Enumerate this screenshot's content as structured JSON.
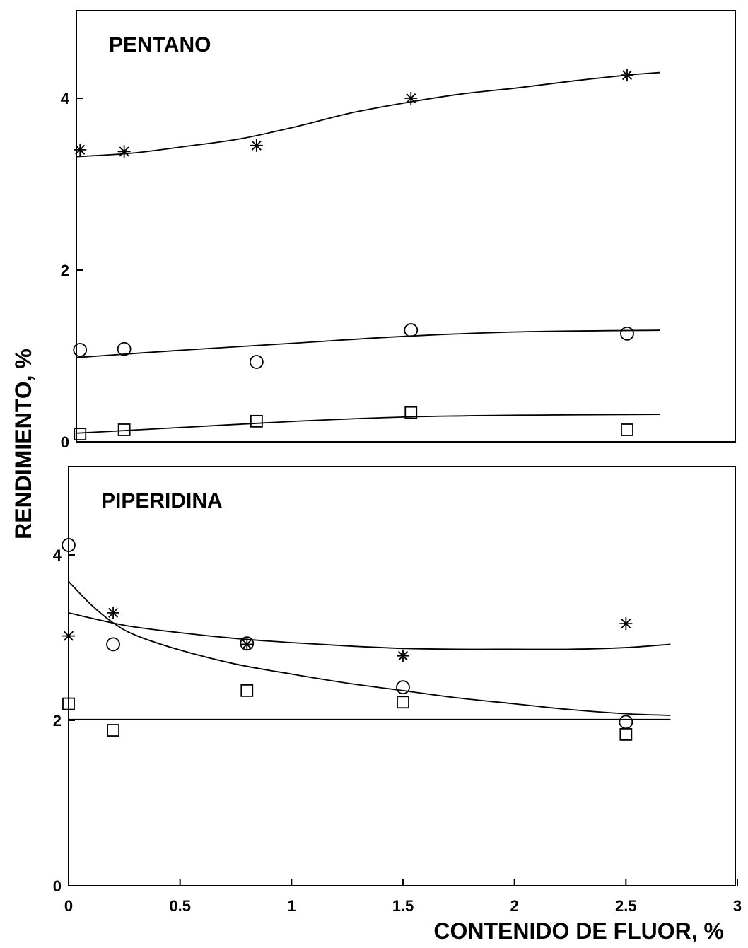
{
  "chart_data": [
    {
      "type": "scatter",
      "title": "PENTANO",
      "xlabel": "CONTENIDO DE FLUOR, %",
      "ylabel": "RENDIMIENTO, %",
      "xlim": [
        0,
        3
      ],
      "ylim": [
        0,
        4.8
      ],
      "xticks": [],
      "yticks": [
        0,
        2,
        4
      ],
      "grid": false,
      "series": [
        {
          "marker": "star",
          "points": [
            [
              0.02,
              3.4
            ],
            [
              0.22,
              3.38
            ],
            [
              0.82,
              3.45
            ],
            [
              1.52,
              4.0
            ],
            [
              2.5,
              4.27
            ]
          ],
          "fit": [
            [
              0,
              3.32
            ],
            [
              0.25,
              3.36
            ],
            [
              0.5,
              3.44
            ],
            [
              0.75,
              3.53
            ],
            [
              1.0,
              3.67
            ],
            [
              1.25,
              3.83
            ],
            [
              1.5,
              3.95
            ],
            [
              1.75,
              4.05
            ],
            [
              2.0,
              4.12
            ],
            [
              2.25,
              4.2
            ],
            [
              2.5,
              4.27
            ],
            [
              2.65,
              4.3
            ]
          ]
        },
        {
          "marker": "circle",
          "points": [
            [
              0.02,
              1.07
            ],
            [
              0.22,
              1.08
            ],
            [
              0.82,
              0.93
            ],
            [
              1.52,
              1.3
            ],
            [
              2.5,
              1.26
            ]
          ],
          "fit": [
            [
              0,
              0.98
            ],
            [
              0.5,
              1.07
            ],
            [
              1.0,
              1.15
            ],
            [
              1.5,
              1.23
            ],
            [
              2.0,
              1.28
            ],
            [
              2.65,
              1.3
            ]
          ]
        },
        {
          "marker": "square",
          "points": [
            [
              0.02,
              0.09
            ],
            [
              0.22,
              0.14
            ],
            [
              0.82,
              0.24
            ],
            [
              1.52,
              0.34
            ],
            [
              2.5,
              0.14
            ]
          ],
          "fit": [
            [
              0,
              0.1
            ],
            [
              0.5,
              0.17
            ],
            [
              1.0,
              0.24
            ],
            [
              1.5,
              0.29
            ],
            [
              2.0,
              0.31
            ],
            [
              2.65,
              0.32
            ]
          ]
        }
      ]
    },
    {
      "type": "scatter",
      "title": "PIPERIDINA",
      "xlabel": "CONTENIDO DE FLUOR, %",
      "ylabel": "RENDIMIENTO, %",
      "xlim": [
        0,
        3
      ],
      "ylim": [
        0,
        4.8
      ],
      "xticks": [
        0,
        0.5,
        1,
        1.5,
        2,
        2.5,
        3
      ],
      "xtick_labels": [
        "0",
        "0.5",
        "1",
        "1.5",
        "2",
        "2.5",
        "3"
      ],
      "yticks": [
        0,
        2,
        4
      ],
      "grid": false,
      "series": [
        {
          "marker": "star",
          "points": [
            [
              0.0,
              3.02
            ],
            [
              0.2,
              3.3
            ],
            [
              0.8,
              2.92
            ],
            [
              1.5,
              2.78
            ],
            [
              2.5,
              3.17
            ]
          ],
          "fit": [
            [
              0,
              3.3
            ],
            [
              0.25,
              3.15
            ],
            [
              0.5,
              3.06
            ],
            [
              0.75,
              2.99
            ],
            [
              1.0,
              2.94
            ],
            [
              1.25,
              2.9
            ],
            [
              1.5,
              2.87
            ],
            [
              1.75,
              2.86
            ],
            [
              2.0,
              2.86
            ],
            [
              2.25,
              2.86
            ],
            [
              2.5,
              2.88
            ],
            [
              2.7,
              2.92
            ]
          ]
        },
        {
          "marker": "circle",
          "points": [
            [
              0.0,
              4.12
            ],
            [
              0.2,
              2.92
            ],
            [
              0.8,
              2.93
            ],
            [
              1.5,
              2.4
            ],
            [
              2.5,
              1.98
            ]
          ],
          "fit": [
            [
              0,
              3.68
            ],
            [
              0.1,
              3.4
            ],
            [
              0.2,
              3.18
            ],
            [
              0.3,
              3.03
            ],
            [
              0.5,
              2.85
            ],
            [
              0.75,
              2.68
            ],
            [
              1.0,
              2.56
            ],
            [
              1.25,
              2.45
            ],
            [
              1.5,
              2.36
            ],
            [
              1.75,
              2.27
            ],
            [
              2.0,
              2.2
            ],
            [
              2.25,
              2.13
            ],
            [
              2.5,
              2.08
            ],
            [
              2.7,
              2.06
            ]
          ]
        },
        {
          "marker": "square",
          "points": [
            [
              0.0,
              2.2
            ],
            [
              0.2,
              1.88
            ],
            [
              0.8,
              2.36
            ],
            [
              1.5,
              2.22
            ],
            [
              2.5,
              1.83
            ]
          ],
          "fit": [
            [
              0,
              2.01
            ],
            [
              2.7,
              2.01
            ]
          ]
        }
      ]
    }
  ]
}
